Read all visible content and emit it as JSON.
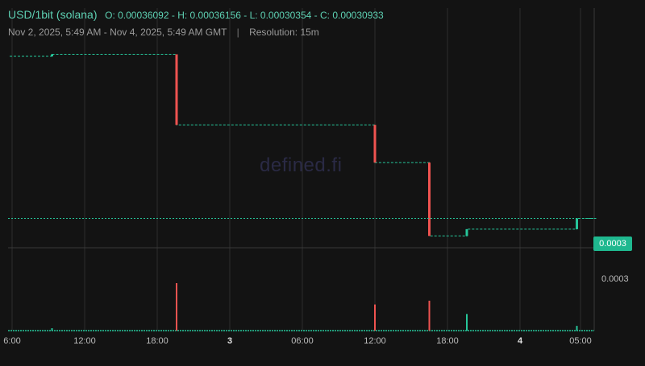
{
  "header": {
    "pair": "USD/1bit (solana)",
    "ohlc": "O: 0.00036092 - H: 0.00036156 - L: 0.00030354 - C: 0.00030933",
    "date_range": "Nov 2, 2025, 5:49 AM - Nov 4, 2025, 5:49 AM GMT",
    "separator": "|",
    "resolution": "Resolution: 15m"
  },
  "watermark": "defined.fi",
  "price_axis": {
    "current_price_label": "0.0003",
    "grid_price_label": "0.0003"
  },
  "colors": {
    "up": "#26c69a",
    "down": "#ef5350",
    "accent": "#5ed1b3",
    "background": "#131313"
  },
  "chart_data": {
    "type": "candlestick",
    "x_unit": "hours since Nov 2, 2025 06:00 GMT",
    "x_ticks": [
      {
        "label": "6:00",
        "x": 0,
        "bold": false
      },
      {
        "label": "12:00",
        "x": 6,
        "bold": false
      },
      {
        "label": "18:00",
        "x": 12,
        "bold": false
      },
      {
        "label": "3",
        "x": 18,
        "bold": true
      },
      {
        "label": "06:00",
        "x": 24,
        "bold": false
      },
      {
        "label": "12:00",
        "x": 30,
        "bold": false
      },
      {
        "label": "18:00",
        "x": 36,
        "bold": false
      },
      {
        "label": "4",
        "x": 42,
        "bold": true
      },
      {
        "label": "05:00",
        "x": 47,
        "bold": false
      }
    ],
    "price_range": [
      0.00029,
      0.000364
    ],
    "price_series": [
      {
        "x": -0.2,
        "price": 0.00036092
      },
      {
        "x": 3.3,
        "price": 0.00036092
      },
      {
        "x": 3.3,
        "price": 0.00036156
      },
      {
        "x": 13.6,
        "price": 0.00036156
      },
      {
        "x": 13.6,
        "price": 0.0003391
      },
      {
        "x": 30.0,
        "price": 0.0003391
      },
      {
        "x": 30.0,
        "price": 0.0003271
      },
      {
        "x": 34.5,
        "price": 0.0003271
      },
      {
        "x": 34.5,
        "price": 0.00030375
      },
      {
        "x": 37.6,
        "price": 0.00030375
      },
      {
        "x": 37.6,
        "price": 0.0003059
      },
      {
        "x": 46.7,
        "price": 0.0003059
      },
      {
        "x": 46.7,
        "price": 0.00030933
      },
      {
        "x": 48.3,
        "price": 0.00030933
      }
    ],
    "candles": [
      {
        "x": 3.3,
        "open": 0.00036092,
        "close": 0.00036156,
        "high": 0.00036156,
        "low": 0.00036092
      },
      {
        "x": 13.6,
        "open": 0.00036156,
        "close": 0.0003391,
        "high": 0.00036156,
        "low": 0.0003391
      },
      {
        "x": 30.0,
        "open": 0.0003391,
        "close": 0.0003271,
        "high": 0.0003391,
        "low": 0.0003271
      },
      {
        "x": 34.5,
        "open": 0.0003271,
        "close": 0.00030375,
        "high": 0.0003271,
        "low": 0.00030375
      },
      {
        "x": 37.6,
        "open": 0.00030375,
        "close": 0.0003059,
        "high": 0.0003059,
        "low": 0.00030354
      },
      {
        "x": 46.7,
        "open": 0.0003059,
        "close": 0.00030933,
        "high": 0.00030933,
        "low": 0.0003059
      }
    ],
    "current_price": 0.00030933,
    "grid_price": 0.0003,
    "volume_bars": [
      {
        "x": 3.3,
        "value": 0.05,
        "dir": "up"
      },
      {
        "x": 13.6,
        "value": 1.0,
        "dir": "down"
      },
      {
        "x": 30.0,
        "value": 0.55,
        "dir": "down"
      },
      {
        "x": 34.5,
        "value": 0.63,
        "dir": "down"
      },
      {
        "x": 37.6,
        "value": 0.35,
        "dir": "up"
      },
      {
        "x": 46.7,
        "value": 0.1,
        "dir": "up"
      }
    ],
    "grid": true
  }
}
